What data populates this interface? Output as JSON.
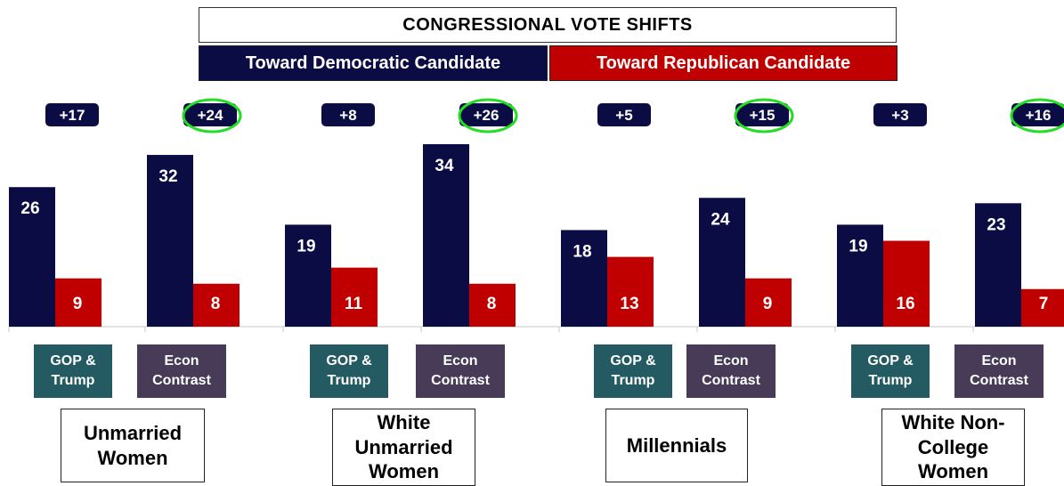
{
  "header": {
    "title": "CONGRESSIONAL  VOTE SHIFTS",
    "legend_dem": "Toward Democratic Candidate",
    "legend_rep": "Toward Republican Candidate"
  },
  "groups": [
    {
      "label": "Unmarried\nWomen"
    },
    {
      "label": "White\nUnmarried\nWomen"
    },
    {
      "label": "Millennials"
    },
    {
      "label": "White Non-\nCollege\nWomen"
    }
  ],
  "messages": [
    "GOP &\nTrump",
    "Econ\nContrast",
    "GOP &\nTrump",
    "Econ\nContrast",
    "GOP &\nTrump",
    "Econ\nContrast",
    "GOP &\nTrump",
    "Econ\nContrast"
  ],
  "colors": {
    "democratic": "#0c0c45",
    "republican": "#c00000",
    "highlight_ring": "#22dd22",
    "gop_box": "#245b62",
    "econ_box": "#473b58"
  },
  "chart_data": {
    "type": "bar",
    "title": "CONGRESSIONAL  VOTE SHIFTS",
    "categories": [
      "GOP & Trump",
      "Econ Contrast",
      "GOP & Trump",
      "Econ Contrast",
      "GOP & Trump",
      "Econ Contrast",
      "GOP & Trump",
      "Econ Contrast"
    ],
    "series": [
      {
        "name": "Toward Democratic Candidate",
        "values": [
          26,
          32,
          19,
          34,
          18,
          24,
          19,
          23
        ]
      },
      {
        "name": "Toward Republican Candidate",
        "values": [
          9,
          8,
          11,
          8,
          13,
          9,
          16,
          7
        ]
      }
    ],
    "net_labels": [
      "+17",
      "+24",
      "+8",
      "+26",
      "+5",
      "+15",
      "+3",
      "+16"
    ],
    "highlighted": [
      false,
      true,
      false,
      true,
      false,
      true,
      false,
      true
    ],
    "ylim": [
      0,
      34
    ],
    "grid": false
  }
}
